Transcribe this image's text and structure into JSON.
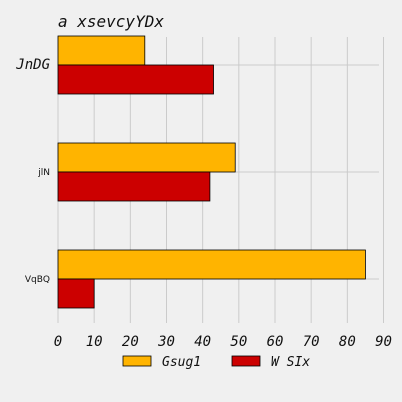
{
  "chart_data": {
    "type": "bar",
    "orientation": "horizontal",
    "title": "a xsevcyYDx",
    "xlabel": "",
    "ylabel": "",
    "categories": [
      "JnDG",
      "jlN",
      "VqBQ"
    ],
    "series": [
      {
        "name": "Gsug1",
        "color": "#ffb400",
        "values": [
          24,
          49,
          85
        ]
      },
      {
        "name": "W SIx",
        "color": "#cc0000",
        "values": [
          43,
          42,
          10
        ]
      }
    ],
    "xlim": [
      0,
      90
    ],
    "xticks": [
      "0",
      "10",
      "20",
      "30",
      "40",
      "50",
      "60",
      "70",
      "80",
      "90"
    ],
    "grid": true,
    "legend_position": "bottom"
  }
}
